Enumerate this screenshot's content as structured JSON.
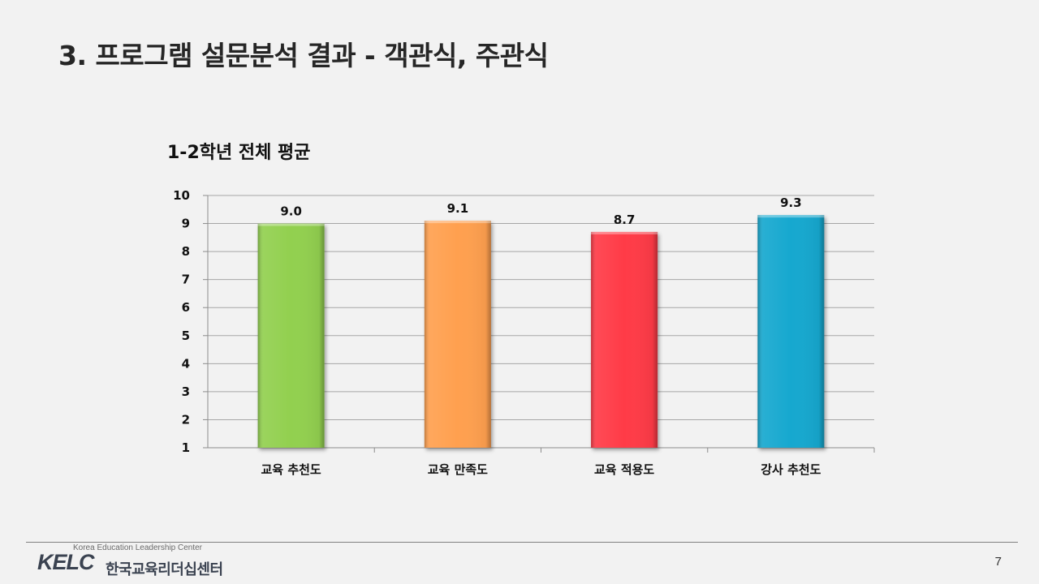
{
  "slide": {
    "title": "3. 프로그램 설문분석 결과 - 객관식, 주관식",
    "page_number": "7"
  },
  "footer": {
    "logo_english": "Korea Education Leadership Center",
    "logo_mark": "KELC",
    "logo_korean": "한국교육리더십센터"
  },
  "chart_data": {
    "type": "bar",
    "title": "1-2학년 전체 평균",
    "categories": [
      "교육 추천도",
      "교육 만족도",
      "교육 적용도",
      "강사 추천도"
    ],
    "values": [
      9.0,
      9.1,
      8.7,
      9.3
    ],
    "value_labels": [
      "9.0",
      "9.1",
      "8.7",
      "9.3"
    ],
    "colors": [
      "#92d050",
      "#ffa050",
      "#ff3b46",
      "#17a8cf"
    ],
    "ylim": [
      1,
      10
    ],
    "yticks": [
      "1",
      "2",
      "3",
      "4",
      "5",
      "6",
      "7",
      "8",
      "9",
      "10"
    ],
    "grid": true,
    "legend": "none",
    "xlabel": "",
    "ylabel": ""
  }
}
